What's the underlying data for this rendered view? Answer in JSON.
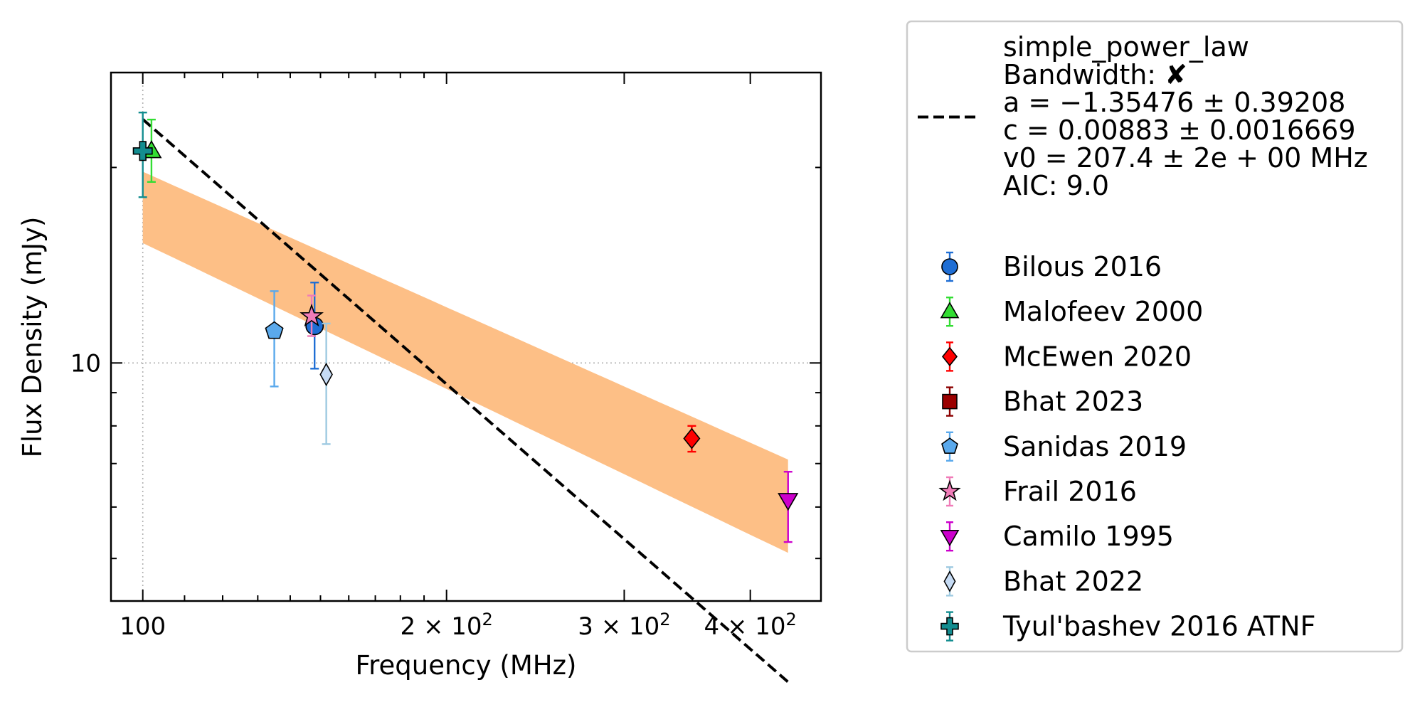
{
  "chart_data": {
    "type": "scatter",
    "xlabel": "Frequency (MHz)",
    "ylabel": "Flux Density (mJy)",
    "x_scale": "log",
    "y_scale": "log",
    "xlim": [
      93,
      470
    ],
    "ylim": [
      4.3,
      28
    ],
    "x_ticks": [
      {
        "value": 100,
        "label": "100"
      },
      {
        "value": 200,
        "label": "2 × 10²"
      },
      {
        "value": 300,
        "label": "3 × 10²"
      },
      {
        "value": 400,
        "label": "4 × 10²"
      }
    ],
    "y_ticks": [
      {
        "value": 10,
        "label": "10"
      }
    ],
    "grid": "dotted at x=100 and y=10",
    "legend_location": "outside-right",
    "fit": {
      "name": "simple_power_law",
      "label_lines": [
        "simple_power_law",
        "Bandwidth: ✘",
        "a = −1.35476 ± 0.39208",
        "c = 0.00883 ± 0.0016669",
        "v0 = 207.4 ± 2e + 00 MHz",
        "AIC: 9.0"
      ],
      "a": -1.35476,
      "c_mJy": 8.83,
      "v0": 207.4,
      "x_range": [
        100,
        436
      ],
      "line_color": "#000000",
      "band_color": "#fdbf86",
      "band_upper": [
        [
          100,
          19.7
        ],
        [
          436,
          7.1
        ]
      ],
      "band_lower": [
        [
          100,
          15.3
        ],
        [
          436,
          5.1
        ]
      ]
    },
    "series": [
      {
        "name": "Bilous 2016",
        "marker": "circle",
        "color": "#1f6ed4",
        "errcolor": "#1f6ed4",
        "x": 148,
        "y": 11.4,
        "yerr_low": 9.8,
        "yerr_high": 13.3
      },
      {
        "name": "Malofeev 2000",
        "marker": "triangle-up",
        "color": "#33dd33",
        "errcolor": "#33dd33",
        "x": 102,
        "y": 21.2,
        "yerr_low": 19.0,
        "yerr_high": 23.7
      },
      {
        "name": "McEwen 2020",
        "marker": "diamond",
        "color": "#ff0000",
        "errcolor": "#ff0000",
        "x": 350,
        "y": 7.65,
        "yerr_low": 7.3,
        "yerr_high": 8.0
      },
      {
        "name": "Bhat 2023",
        "marker": "square",
        "color": "#9b0000",
        "errcolor": "#8b0000"
      },
      {
        "name": "Sanidas 2019",
        "marker": "pentagon",
        "color": "#5aa9ec",
        "errcolor": "#5aa9ec",
        "x": 135,
        "y": 11.2,
        "yerr_low": 9.2,
        "yerr_high": 12.9
      },
      {
        "name": "Frail 2016",
        "marker": "star",
        "color": "#f07cb8",
        "errcolor": "#f07cb8",
        "x": 147,
        "y": 11.8,
        "yerr_low": 11.0,
        "yerr_high": 12.7
      },
      {
        "name": "Camilo 1995",
        "marker": "triangle-down",
        "color": "#cc00cc",
        "errcolor": "#cc00cc",
        "x": 436,
        "y": 6.15,
        "yerr_low": 5.3,
        "yerr_high": 6.8
      },
      {
        "name": "Bhat 2022",
        "marker": "thin-diamond",
        "color": "#c6dbf4",
        "errcolor": "#9ecae1",
        "x": 152,
        "y": 9.6,
        "yerr_low": 7.5,
        "yerr_high": 11.5
      },
      {
        "name": "Tyul'bashev 2016 ATNF",
        "marker": "plus",
        "color": "#138d90",
        "errcolor": "#138d90",
        "x": 100,
        "y": 21.2,
        "yerr_low": 18.0,
        "yerr_high": 24.3
      }
    ]
  }
}
